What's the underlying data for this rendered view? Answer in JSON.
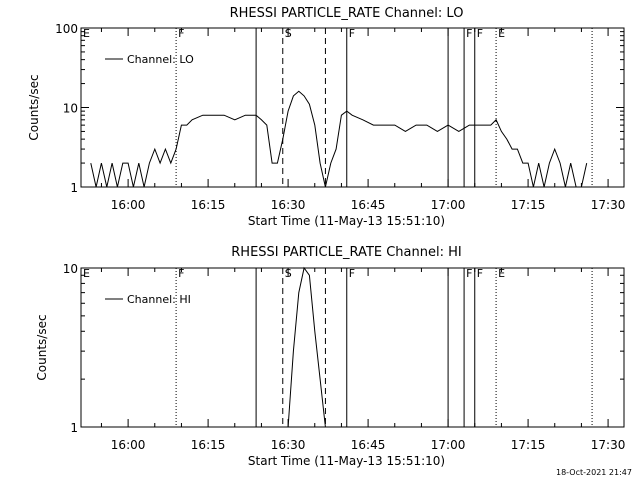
{
  "chart_data": [
    {
      "type": "line",
      "title": "RHESSI PARTICLE_RATE Channel: LO",
      "xlabel": "Start Time (11-May-13 15:51:10)",
      "ylabel": "Counts/sec",
      "y_scale": "log",
      "ylim": [
        1,
        100
      ],
      "xlim": [
        "15:51:10",
        "17:32:00"
      ],
      "x_ticks": [
        "16:00",
        "16:15",
        "16:30",
        "16:45",
        "17:00",
        "17:15",
        "17:30"
      ],
      "y_ticks": [
        "1",
        "10",
        "100"
      ],
      "legend": "top-left",
      "series": [
        {
          "name": "Channel: LO",
          "x": [
            "15:53",
            "15:54",
            "15:55",
            "15:56",
            "15:57",
            "15:58",
            "15:59",
            "16:00",
            "16:01",
            "16:02",
            "16:03",
            "16:04",
            "16:05",
            "16:06",
            "16:07",
            "16:08",
            "16:09",
            "16:10",
            "16:11",
            "16:12",
            "16:14",
            "16:16",
            "16:18",
            "16:20",
            "16:22",
            "16:24",
            "16:25",
            "16:26",
            "16:27",
            "16:28",
            "16:29",
            "16:30",
            "16:31",
            "16:32",
            "16:33",
            "16:34",
            "16:35",
            "16:36",
            "16:37",
            "16:38",
            "16:39",
            "16:40",
            "16:41",
            "16:42",
            "16:44",
            "16:46",
            "16:48",
            "16:50",
            "16:52",
            "16:54",
            "16:56",
            "16:58",
            "17:00",
            "17:02",
            "17:04",
            "17:06",
            "17:08",
            "17:09",
            "17:10",
            "17:11",
            "17:12",
            "17:13",
            "17:14",
            "17:15",
            "17:16",
            "17:17",
            "17:18",
            "17:19",
            "17:20",
            "17:21",
            "17:22",
            "17:23",
            "17:24",
            "17:25",
            "17:26"
          ],
          "y": [
            2,
            1,
            2,
            1,
            2,
            1,
            2,
            2,
            1,
            2,
            1,
            2,
            3,
            2,
            3,
            2,
            3,
            6,
            6,
            7,
            8,
            8,
            8,
            7,
            8,
            8,
            7,
            6,
            2,
            2,
            4,
            9,
            14,
            16,
            14,
            11,
            6,
            2,
            1,
            2,
            3,
            8,
            9,
            8,
            7,
            6,
            6,
            6,
            5,
            6,
            6,
            5,
            6,
            5,
            6,
            6,
            6,
            7,
            5,
            4,
            3,
            3,
            2,
            2,
            1,
            2,
            1,
            2,
            3,
            2,
            1,
            2,
            1,
            1,
            2
          ]
        }
      ],
      "markers": [
        {
          "label": "E",
          "time": "15:51:10",
          "style": "dotted"
        },
        {
          "label": "F",
          "time": "16:09",
          "style": "dotted"
        },
        {
          "label": "",
          "time": "16:24",
          "style": "solid"
        },
        {
          "label": "S",
          "time": "16:29",
          "style": "dashed"
        },
        {
          "label": "",
          "time": "16:37",
          "style": "dashed"
        },
        {
          "label": "F",
          "time": "16:41",
          "style": "solid"
        },
        {
          "label": "F",
          "time": "17:03",
          "style": "solid"
        },
        {
          "label": "F",
          "time": "17:05",
          "style": "solid"
        },
        {
          "label": "",
          "time": "17:00",
          "style": "solid"
        },
        {
          "label": "E",
          "time": "17:09",
          "style": "dotted"
        },
        {
          "label": "",
          "time": "17:27",
          "style": "dotted"
        }
      ]
    },
    {
      "type": "line",
      "title": "RHESSI PARTICLE_RATE Channel: HI",
      "xlabel": "Start Time (11-May-13 15:51:10)",
      "ylabel": "Counts/sec",
      "y_scale": "log",
      "ylim": [
        1,
        10
      ],
      "xlim": [
        "15:51:10",
        "17:32:00"
      ],
      "x_ticks": [
        "16:00",
        "16:15",
        "16:30",
        "16:45",
        "17:00",
        "17:15",
        "17:30"
      ],
      "y_ticks": [
        "1",
        "10"
      ],
      "legend": "top-left",
      "series": [
        {
          "name": "Channel: HI",
          "x": [
            "16:30",
            "16:31",
            "16:32",
            "16:33",
            "16:34",
            "16:35",
            "16:36",
            "16:37"
          ],
          "y": [
            1,
            3,
            7,
            10,
            9,
            4,
            2,
            1
          ]
        }
      ],
      "markers": [
        {
          "label": "E",
          "time": "15:51:10",
          "style": "dotted"
        },
        {
          "label": "F",
          "time": "16:09",
          "style": "dotted"
        },
        {
          "label": "",
          "time": "16:24",
          "style": "solid"
        },
        {
          "label": "S",
          "time": "16:29",
          "style": "dashed"
        },
        {
          "label": "",
          "time": "16:37",
          "style": "dashed"
        },
        {
          "label": "F",
          "time": "16:41",
          "style": "solid"
        },
        {
          "label": "F",
          "time": "17:03",
          "style": "solid"
        },
        {
          "label": "F",
          "time": "17:05",
          "style": "solid"
        },
        {
          "label": "",
          "time": "17:00",
          "style": "solid"
        },
        {
          "label": "E",
          "time": "17:09",
          "style": "dotted"
        },
        {
          "label": "",
          "time": "17:27",
          "style": "dotted"
        }
      ]
    }
  ],
  "footer": {
    "timestamp": "18-Oct-2021 21:47"
  }
}
